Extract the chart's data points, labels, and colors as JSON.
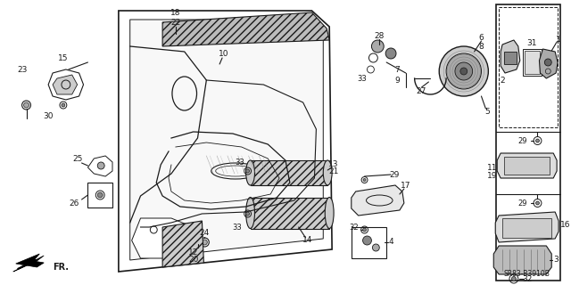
{
  "background_color": "#f0f0f0",
  "line_color": "#1a1a1a",
  "text_color": "#1a1a1a",
  "diagram_ref": "SR83-B3910B",
  "fig_w": 6.4,
  "fig_h": 3.2,
  "dpi": 100
}
